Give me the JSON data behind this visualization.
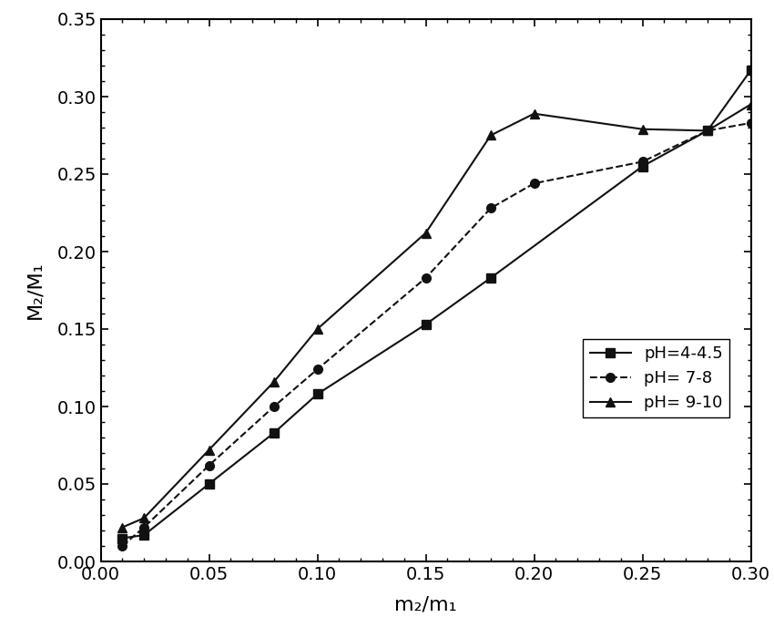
{
  "series": [
    {
      "label": "pH=4-4.5",
      "x": [
        0.01,
        0.02,
        0.05,
        0.08,
        0.1,
        0.15,
        0.18,
        0.25,
        0.28,
        0.3
      ],
      "y": [
        0.015,
        0.017,
        0.05,
        0.083,
        0.108,
        0.153,
        0.183,
        0.255,
        0.278,
        0.317
      ],
      "marker": "s",
      "linestyle": "-",
      "color": "#111111",
      "markersize": 7,
      "linewidth": 1.5
    },
    {
      "label": "pH= 7-8",
      "x": [
        0.01,
        0.02,
        0.05,
        0.08,
        0.1,
        0.15,
        0.18,
        0.2,
        0.25,
        0.28,
        0.3
      ],
      "y": [
        0.01,
        0.022,
        0.062,
        0.1,
        0.124,
        0.183,
        0.228,
        0.244,
        0.258,
        0.278,
        0.283
      ],
      "marker": "o",
      "linestyle": "--",
      "color": "#111111",
      "markersize": 7,
      "linewidth": 1.5
    },
    {
      "label": "pH= 9-10",
      "x": [
        0.01,
        0.02,
        0.05,
        0.08,
        0.1,
        0.15,
        0.18,
        0.2,
        0.25,
        0.28,
        0.3
      ],
      "y": [
        0.022,
        0.028,
        0.072,
        0.116,
        0.15,
        0.212,
        0.275,
        0.289,
        0.279,
        0.278,
        0.295
      ],
      "marker": "^",
      "linestyle": "-",
      "color": "#111111",
      "markersize": 7,
      "linewidth": 1.5
    }
  ],
  "xlabel": "m₂/m₁",
  "ylabel": "M₂/M₁",
  "xlim": [
    0.0,
    0.3
  ],
  "ylim": [
    0.0,
    0.35
  ],
  "xticks": [
    0.0,
    0.05,
    0.1,
    0.15,
    0.2,
    0.25,
    0.3
  ],
  "yticks": [
    0.0,
    0.05,
    0.1,
    0.15,
    0.2,
    0.25,
    0.3,
    0.35
  ],
  "background_color": "#ffffff",
  "tick_fontsize": 14,
  "label_fontsize": 16,
  "legend_fontsize": 13
}
